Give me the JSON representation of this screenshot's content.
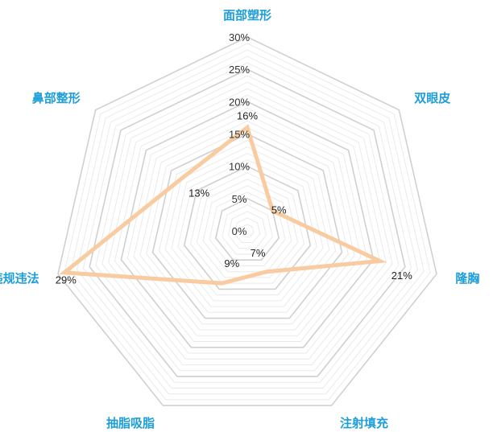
{
  "chart_data": {
    "type": "radar",
    "categories": [
      "面部塑形",
      "双眼皮",
      "隆胸",
      "注射填充",
      "抽脂吸脂",
      "违规违法",
      "鼻部整形"
    ],
    "series": [
      {
        "values": [
          16,
          5,
          21,
          7,
          9,
          29,
          13
        ]
      }
    ],
    "data_labels": [
      "16%",
      "5%",
      "21%",
      "7%",
      "9%",
      "29%",
      "13%"
    ],
    "radial_ticks": [
      "0%",
      "5%",
      "10%",
      "15%",
      "20%",
      "25%",
      "30%"
    ],
    "range": [
      0,
      30
    ],
    "grid": true,
    "legend": "none",
    "colors": {
      "series_line": "#F9CBA0",
      "category_label": "#1E9ED8",
      "major_grid": "#D0D0D0",
      "minor_grid": "#EAEAEA"
    }
  }
}
